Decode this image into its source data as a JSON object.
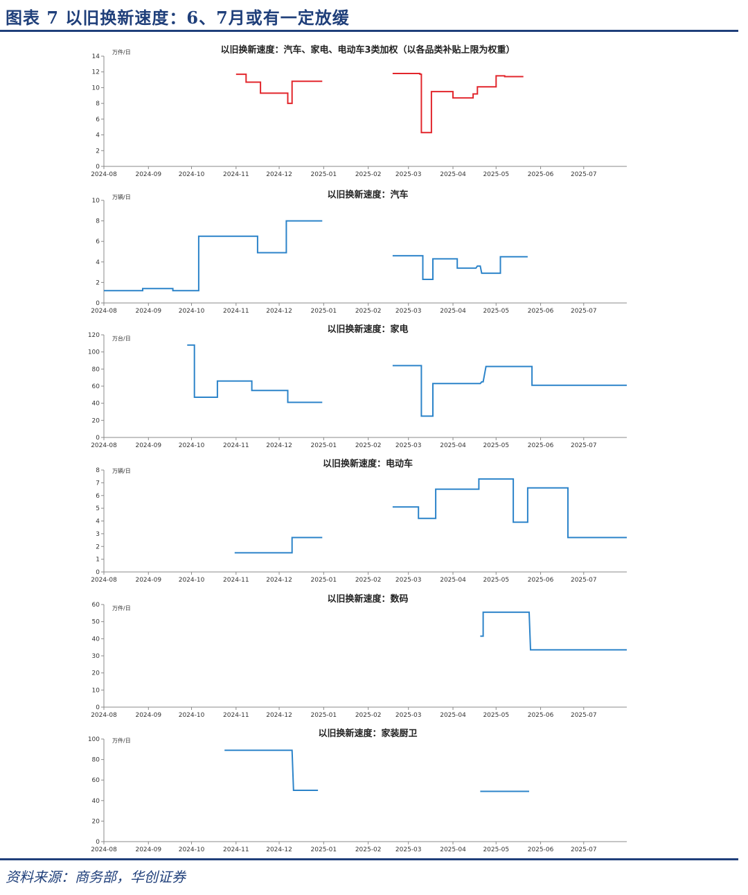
{
  "header": {
    "title": "图表 7   以旧换新速度：6、7月或有一定放缓"
  },
  "source": "资料来源：商务部，华创证券",
  "colors": {
    "accent": "#1f3f7a",
    "red_series": "#e2252b",
    "blue_series": "#2b83c9"
  },
  "chart_data": [
    {
      "type": "line",
      "title": "以旧换新速度：汽车、家电、电动车3类加权（以各品类补贴上限为权重）",
      "unit": "万件/日",
      "ylim": [
        0,
        14
      ],
      "yticks": [
        0,
        2,
        4,
        6,
        8,
        10,
        12,
        14
      ],
      "xlim": [
        "2024-08-01",
        "2025-07-31"
      ],
      "xticks": [
        "2024-08",
        "2024-09",
        "2024-10",
        "2024-11",
        "2024-12",
        "2025-01",
        "2025-02",
        "2025-03",
        "2025-04",
        "2025-05",
        "2025-06",
        "2025-07"
      ],
      "color": "red",
      "series": [
        {
          "points": [
            [
              "2024-11-01",
              11.7
            ],
            [
              "2024-11-08",
              11.7
            ],
            [
              "2024-11-08",
              10.7
            ],
            [
              "2024-11-18",
              10.7
            ],
            [
              "2024-11-18",
              9.3
            ],
            [
              "2024-12-07",
              9.3
            ],
            [
              "2024-12-07",
              8.0
            ],
            [
              "2024-12-10",
              8.0
            ],
            [
              "2024-12-10",
              10.8
            ],
            [
              "2024-12-31",
              10.8
            ]
          ]
        },
        {
          "points": [
            [
              "2025-02-18",
              11.8
            ],
            [
              "2025-03-09",
              11.8
            ],
            [
              "2025-03-09",
              11.7
            ],
            [
              "2025-03-10",
              11.7
            ],
            [
              "2025-03-10",
              4.3
            ],
            [
              "2025-03-17",
              4.3
            ],
            [
              "2025-03-17",
              9.5
            ],
            [
              "2025-04-01",
              9.5
            ],
            [
              "2025-04-01",
              8.7
            ],
            [
              "2025-04-15",
              8.7
            ],
            [
              "2025-04-15",
              9.2
            ],
            [
              "2025-04-18",
              9.2
            ],
            [
              "2025-04-18",
              10.1
            ],
            [
              "2025-05-01",
              10.1
            ],
            [
              "2025-05-01",
              11.5
            ],
            [
              "2025-05-07",
              11.5
            ],
            [
              "2025-05-07",
              11.4
            ],
            [
              "2025-05-20",
              11.4
            ]
          ]
        }
      ]
    },
    {
      "type": "line",
      "title": "以旧换新速度：汽车",
      "unit": "万辆/日",
      "ylim": [
        0,
        10
      ],
      "yticks": [
        0,
        2,
        4,
        6,
        8,
        10
      ],
      "xlim": [
        "2024-08-01",
        "2025-07-31"
      ],
      "xticks": [
        "2024-08",
        "2024-09",
        "2024-10",
        "2024-11",
        "2024-12",
        "2025-01",
        "2025-02",
        "2025-03",
        "2025-04",
        "2025-05",
        "2025-06",
        "2025-07"
      ],
      "color": "blue",
      "series": [
        {
          "points": [
            [
              "2024-08-01",
              1.2
            ],
            [
              "2024-08-28",
              1.2
            ],
            [
              "2024-08-28",
              1.4
            ],
            [
              "2024-09-18",
              1.4
            ],
            [
              "2024-09-18",
              1.2
            ],
            [
              "2024-10-06",
              1.2
            ],
            [
              "2024-10-06",
              6.5
            ],
            [
              "2024-11-16",
              6.5
            ],
            [
              "2024-11-16",
              4.9
            ],
            [
              "2024-12-06",
              4.9
            ],
            [
              "2024-12-06",
              8.0
            ],
            [
              "2024-12-31",
              8.0
            ]
          ]
        },
        {
          "points": [
            [
              "2025-02-18",
              4.6
            ],
            [
              "2025-03-11",
              4.6
            ],
            [
              "2025-03-11",
              2.3
            ],
            [
              "2025-03-18",
              2.3
            ],
            [
              "2025-03-18",
              4.3
            ],
            [
              "2025-04-04",
              4.3
            ],
            [
              "2025-04-04",
              3.4
            ],
            [
              "2025-04-17",
              3.4
            ],
            [
              "2025-04-18",
              3.6
            ],
            [
              "2025-04-20",
              3.6
            ],
            [
              "2025-04-21",
              2.9
            ],
            [
              "2025-05-04",
              2.9
            ],
            [
              "2025-05-04",
              4.5
            ],
            [
              "2025-05-23",
              4.5
            ]
          ]
        }
      ]
    },
    {
      "type": "line",
      "title": "以旧换新速度：家电",
      "unit": "万台/日",
      "ylim": [
        0,
        120
      ],
      "yticks": [
        0,
        20,
        40,
        60,
        80,
        100,
        120
      ],
      "xlim": [
        "2024-08-01",
        "2025-07-31"
      ],
      "xticks": [
        "2024-08",
        "2024-09",
        "2024-10",
        "2024-11",
        "2024-12",
        "2025-01",
        "2025-02",
        "2025-03",
        "2025-04",
        "2025-05",
        "2025-06",
        "2025-07"
      ],
      "color": "blue",
      "series": [
        {
          "points": [
            [
              "2024-09-28",
              108
            ],
            [
              "2024-10-03",
              108
            ],
            [
              "2024-10-03",
              47
            ],
            [
              "2024-10-19",
              47
            ],
            [
              "2024-10-19",
              66
            ],
            [
              "2024-11-12",
              66
            ],
            [
              "2024-11-12",
              55
            ],
            [
              "2024-12-07",
              55
            ],
            [
              "2024-12-07",
              41
            ],
            [
              "2024-12-31",
              41
            ]
          ]
        },
        {
          "points": [
            [
              "2025-02-18",
              84
            ],
            [
              "2025-03-10",
              84
            ],
            [
              "2025-03-10",
              25
            ],
            [
              "2025-03-18",
              25
            ],
            [
              "2025-03-18",
              63
            ],
            [
              "2025-04-20",
              63
            ],
            [
              "2025-04-21",
              65
            ],
            [
              "2025-04-22",
              65
            ],
            [
              "2025-04-24",
              83
            ],
            [
              "2025-05-26",
              83
            ],
            [
              "2025-05-26",
              61
            ],
            [
              "2025-07-31",
              61
            ]
          ]
        }
      ]
    },
    {
      "type": "line",
      "title": "以旧换新速度：电动车",
      "unit": "万辆/日",
      "ylim": [
        0,
        8
      ],
      "yticks": [
        0,
        1,
        2,
        3,
        4,
        5,
        6,
        7,
        8
      ],
      "xlim": [
        "2024-08-01",
        "2025-07-31"
      ],
      "xticks": [
        "2024-08",
        "2024-09",
        "2024-10",
        "2024-11",
        "2024-12",
        "2025-01",
        "2025-02",
        "2025-03",
        "2025-04",
        "2025-05",
        "2025-06",
        "2025-07"
      ],
      "color": "blue",
      "series": [
        {
          "points": [
            [
              "2024-10-31",
              1.5
            ],
            [
              "2024-12-10",
              1.5
            ],
            [
              "2024-12-10",
              2.7
            ],
            [
              "2024-12-31",
              2.7
            ]
          ]
        },
        {
          "points": [
            [
              "2025-02-18",
              5.1
            ],
            [
              "2025-03-08",
              5.1
            ],
            [
              "2025-03-08",
              4.2
            ],
            [
              "2025-03-20",
              4.2
            ],
            [
              "2025-03-20",
              6.5
            ],
            [
              "2025-04-19",
              6.5
            ],
            [
              "2025-04-19",
              7.3
            ],
            [
              "2025-05-13",
              7.3
            ],
            [
              "2025-05-13",
              3.9
            ],
            [
              "2025-05-23",
              3.9
            ],
            [
              "2025-05-23",
              6.6
            ],
            [
              "2025-06-20",
              6.6
            ],
            [
              "2025-06-20",
              2.7
            ],
            [
              "2025-07-31",
              2.7
            ]
          ]
        }
      ]
    },
    {
      "type": "line",
      "title": "以旧换新速度：数码",
      "unit": "万件/日",
      "ylim": [
        0,
        60
      ],
      "yticks": [
        0,
        10,
        20,
        30,
        40,
        50,
        60
      ],
      "xlim": [
        "2024-08-01",
        "2025-07-31"
      ],
      "xticks": [
        "2024-08",
        "2024-09",
        "2024-10",
        "2024-11",
        "2024-12",
        "2025-01",
        "2025-02",
        "2025-03",
        "2025-04",
        "2025-05",
        "2025-06",
        "2025-07"
      ],
      "color": "blue",
      "series": [
        {
          "points": [
            [
              "2025-04-20",
              41.5
            ],
            [
              "2025-04-22",
              41.5
            ],
            [
              "2025-04-22",
              55.5
            ],
            [
              "2025-05-24",
              55.5
            ],
            [
              "2025-05-25",
              33.5
            ],
            [
              "2025-07-31",
              33.5
            ]
          ]
        }
      ]
    },
    {
      "type": "line",
      "title": "以旧换新速度：家装厨卫",
      "unit": "万件/日",
      "ylim": [
        0,
        100
      ],
      "yticks": [
        0,
        20,
        40,
        60,
        80,
        100
      ],
      "xlim": [
        "2024-08-01",
        "2025-07-31"
      ],
      "xticks": [
        "2024-08",
        "2024-09",
        "2024-10",
        "2024-11",
        "2024-12",
        "2025-01",
        "2025-02",
        "2025-03",
        "2025-04",
        "2025-05",
        "2025-06",
        "2025-07"
      ],
      "color": "blue",
      "series": [
        {
          "points": [
            [
              "2024-10-24",
              89
            ],
            [
              "2024-12-10",
              89
            ],
            [
              "2024-12-11",
              50
            ],
            [
              "2024-12-28",
              50
            ]
          ]
        },
        {
          "points": [
            [
              "2025-04-20",
              49
            ],
            [
              "2025-05-24",
              49
            ]
          ]
        }
      ]
    }
  ]
}
